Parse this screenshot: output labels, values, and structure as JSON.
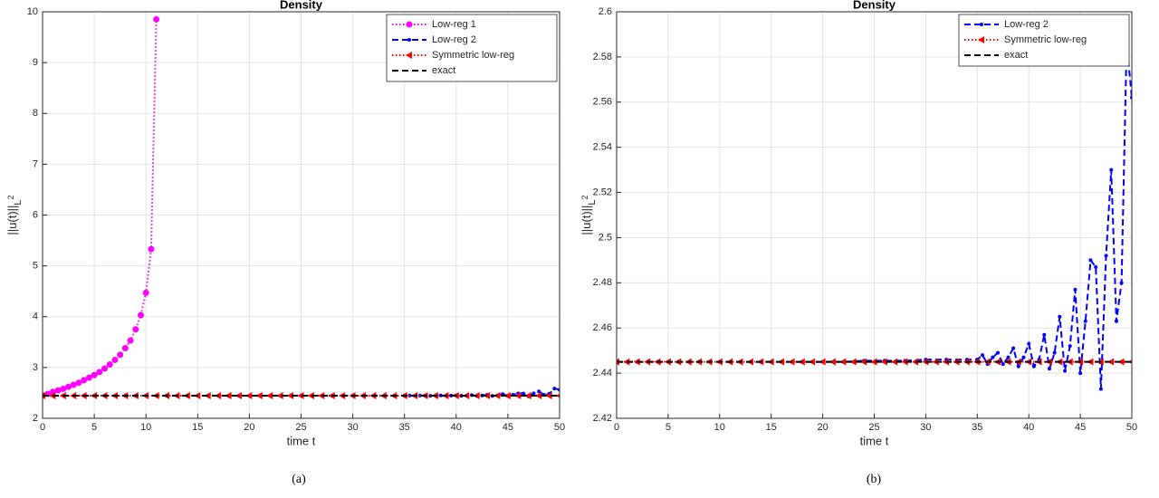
{
  "chart_data": [
    {
      "type": "line",
      "title": "Density",
      "xlabel": "time t",
      "ylabel": "||u(t)||",
      "ylabel_subscript": "L",
      "ylabel_subsubscript": "2",
      "caption": "(a)",
      "xlim": [
        0,
        50
      ],
      "ylim": [
        2,
        10
      ],
      "xticks": [
        0,
        5,
        10,
        15,
        20,
        25,
        30,
        35,
        40,
        45,
        50
      ],
      "yticks": [
        2,
        3,
        4,
        5,
        6,
        7,
        8,
        9,
        10
      ],
      "grid": true,
      "legend": "northeast",
      "series": [
        {
          "name": "Low-reg 1",
          "color": "#ff00ff",
          "linestyle": "dotted",
          "marker": "circle",
          "x": [
            0,
            0.5,
            1,
            1.5,
            2,
            2.5,
            3,
            3.5,
            4,
            4.5,
            5,
            5.5,
            6,
            6.5,
            7,
            7.5,
            8,
            8.5,
            9,
            9.5,
            10,
            10.5,
            11
          ],
          "values": [
            2.45,
            2.48,
            2.52,
            2.55,
            2.58,
            2.62,
            2.66,
            2.7,
            2.75,
            2.8,
            2.85,
            2.91,
            2.98,
            3.06,
            3.15,
            3.25,
            3.38,
            3.53,
            3.75,
            4.03,
            4.47,
            5.33,
            9.85
          ]
        },
        {
          "name": "Low-reg 2",
          "color": "#0000ff",
          "linestyle": "dashed",
          "marker": "dot",
          "x": [
            0,
            2,
            4,
            6,
            8,
            10,
            12,
            14,
            16,
            18,
            20,
            22,
            24,
            26,
            28,
            30,
            32,
            34,
            35,
            35.5,
            36,
            36.5,
            37,
            37.5,
            38,
            38.5,
            39,
            39.5,
            40,
            40.5,
            41,
            41.5,
            42,
            42.5,
            43,
            43.5,
            44,
            44.5,
            45,
            45.5,
            46,
            46.5,
            47,
            47.5,
            48,
            48.5,
            49,
            49.5,
            50
          ],
          "values": [
            2.445,
            2.445,
            2.445,
            2.445,
            2.445,
            2.445,
            2.445,
            2.445,
            2.445,
            2.445,
            2.445,
            2.445,
            2.4455,
            2.4455,
            2.4455,
            2.446,
            2.446,
            2.446,
            2.446,
            2.448,
            2.444,
            2.447,
            2.449,
            2.444,
            2.447,
            2.451,
            2.443,
            2.447,
            2.453,
            2.443,
            2.446,
            2.457,
            2.442,
            2.449,
            2.465,
            2.441,
            2.452,
            2.477,
            2.44,
            2.463,
            2.49,
            2.487,
            2.433,
            2.492,
            2.53,
            2.463,
            2.48,
            2.586,
            2.562
          ]
        },
        {
          "name": "Symmetric low-reg",
          "color": "#ff0000",
          "linestyle": "dotted",
          "marker": "triangle-left",
          "x": [
            0,
            1,
            2,
            3,
            4,
            5,
            6,
            7,
            8,
            9,
            10,
            11,
            12,
            13,
            14,
            15,
            16,
            17,
            18,
            19,
            20,
            21,
            22,
            23,
            24,
            25,
            26,
            27,
            28,
            29,
            30,
            31,
            32,
            33,
            34,
            35,
            36,
            37,
            38,
            39,
            40,
            41,
            42,
            43,
            44,
            45,
            46,
            47,
            48,
            49,
            50
          ],
          "values": [
            2.445,
            2.445,
            2.445,
            2.445,
            2.445,
            2.445,
            2.445,
            2.445,
            2.445,
            2.445,
            2.445,
            2.445,
            2.445,
            2.445,
            2.445,
            2.445,
            2.445,
            2.445,
            2.445,
            2.445,
            2.445,
            2.445,
            2.445,
            2.445,
            2.445,
            2.445,
            2.445,
            2.445,
            2.445,
            2.445,
            2.445,
            2.445,
            2.445,
            2.445,
            2.445,
            2.445,
            2.445,
            2.445,
            2.445,
            2.445,
            2.445,
            2.445,
            2.445,
            2.445,
            2.445,
            2.445,
            2.445,
            2.445,
            2.445,
            2.445,
            2.445
          ]
        },
        {
          "name": "exact",
          "color": "#000000",
          "linestyle": "dashed",
          "marker": "none",
          "x": [
            0,
            50
          ],
          "values": [
            2.445,
            2.445
          ]
        }
      ]
    },
    {
      "type": "line",
      "title": "Density",
      "xlabel": "time t",
      "ylabel": "||u(t)||",
      "ylabel_subscript": "L",
      "ylabel_subsubscript": "2",
      "caption": "(b)",
      "xlim": [
        0,
        50
      ],
      "ylim": [
        2.42,
        2.6
      ],
      "xticks": [
        0,
        5,
        10,
        15,
        20,
        25,
        30,
        35,
        40,
        45,
        50
      ],
      "yticks": [
        2.42,
        2.44,
        2.46,
        2.48,
        2.5,
        2.52,
        2.54,
        2.56,
        2.58,
        2.6
      ],
      "grid": true,
      "legend": "northeast",
      "series": [
        {
          "name": "Low-reg 2",
          "color": "#0000ff",
          "linestyle": "dashed",
          "marker": "dot",
          "x": [
            0,
            2,
            4,
            6,
            8,
            10,
            12,
            14,
            16,
            18,
            20,
            22,
            24,
            26,
            28,
            30,
            32,
            34,
            35,
            35.5,
            36,
            36.5,
            37,
            37.5,
            38,
            38.5,
            39,
            39.5,
            40,
            40.5,
            41,
            41.5,
            42,
            42.5,
            43,
            43.5,
            44,
            44.5,
            45,
            45.5,
            46,
            46.5,
            47,
            47.5,
            48,
            48.5,
            49,
            49.5,
            50
          ],
          "values": [
            2.445,
            2.445,
            2.445,
            2.445,
            2.445,
            2.445,
            2.445,
            2.445,
            2.445,
            2.445,
            2.445,
            2.445,
            2.4455,
            2.4455,
            2.4455,
            2.446,
            2.446,
            2.446,
            2.446,
            2.448,
            2.444,
            2.447,
            2.449,
            2.444,
            2.447,
            2.451,
            2.443,
            2.447,
            2.453,
            2.443,
            2.446,
            2.457,
            2.442,
            2.449,
            2.465,
            2.441,
            2.452,
            2.477,
            2.44,
            2.463,
            2.49,
            2.487,
            2.433,
            2.492,
            2.53,
            2.463,
            2.48,
            2.586,
            2.562
          ]
        },
        {
          "name": "Symmetric low-reg",
          "color": "#ff0000",
          "linestyle": "dotted",
          "marker": "triangle-left",
          "x": [
            0,
            1,
            2,
            3,
            4,
            5,
            6,
            7,
            8,
            9,
            10,
            11,
            12,
            13,
            14,
            15,
            16,
            17,
            18,
            19,
            20,
            21,
            22,
            23,
            24,
            25,
            26,
            27,
            28,
            29,
            30,
            31,
            32,
            33,
            34,
            35,
            36,
            37,
            38,
            39,
            40,
            41,
            42,
            43,
            44,
            45,
            46,
            47,
            48,
            49,
            50
          ],
          "values": [
            2.445,
            2.445,
            2.445,
            2.445,
            2.445,
            2.445,
            2.445,
            2.445,
            2.445,
            2.445,
            2.445,
            2.445,
            2.445,
            2.445,
            2.445,
            2.445,
            2.445,
            2.445,
            2.445,
            2.445,
            2.445,
            2.445,
            2.445,
            2.445,
            2.445,
            2.445,
            2.445,
            2.445,
            2.445,
            2.445,
            2.445,
            2.445,
            2.445,
            2.445,
            2.445,
            2.445,
            2.445,
            2.445,
            2.445,
            2.445,
            2.445,
            2.445,
            2.445,
            2.445,
            2.445,
            2.445,
            2.445,
            2.445,
            2.445,
            2.445,
            2.445
          ]
        },
        {
          "name": "exact",
          "color": "#000000",
          "linestyle": "dashed",
          "marker": "none",
          "x": [
            0,
            50
          ],
          "values": [
            2.445,
            2.445
          ]
        }
      ]
    }
  ]
}
